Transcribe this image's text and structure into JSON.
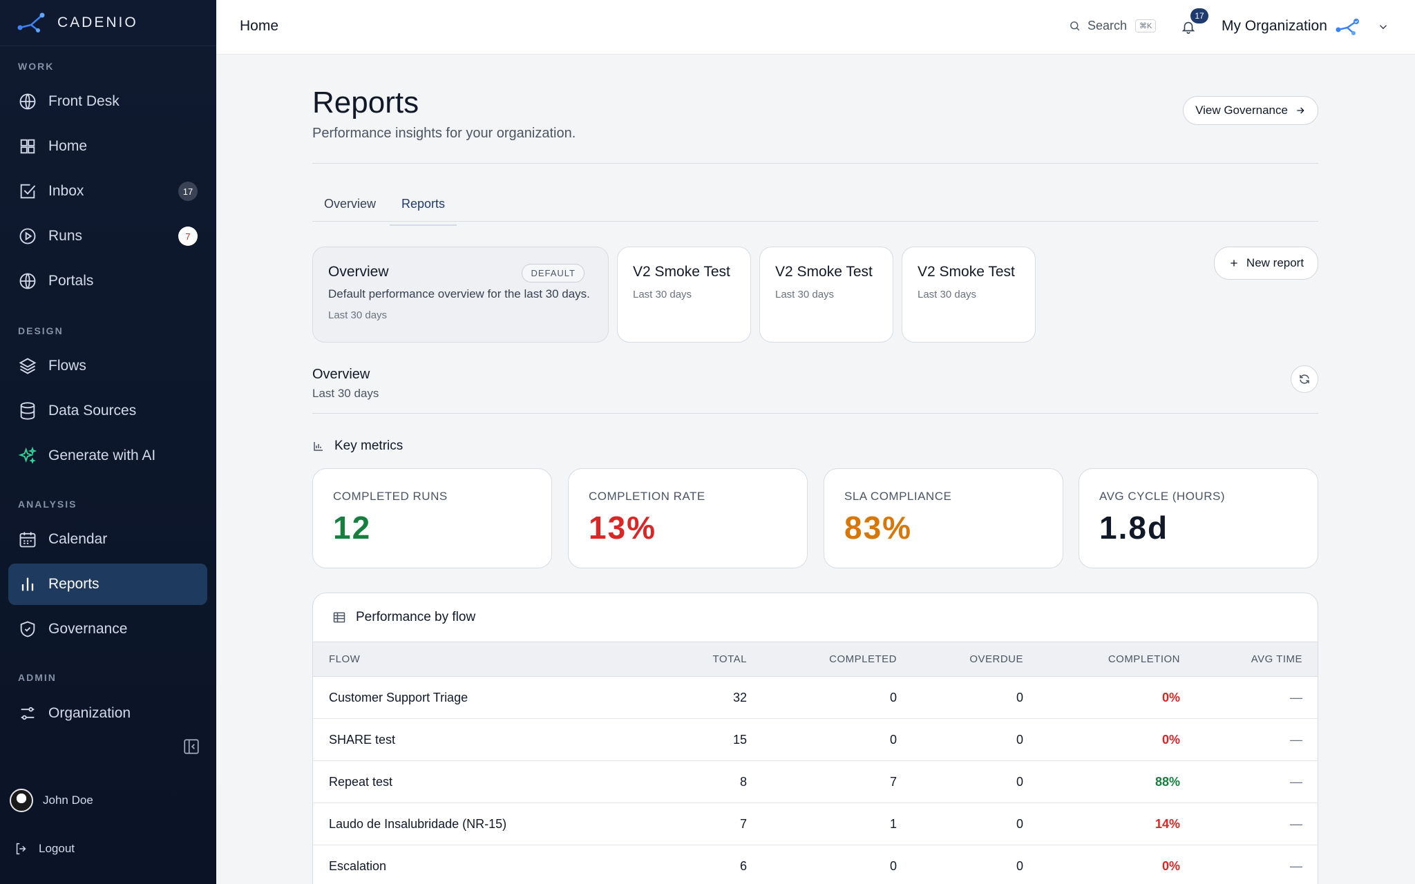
{
  "brand": {
    "name": "CADENIO"
  },
  "sidebar": {
    "sections": [
      {
        "label": "WORK"
      },
      {
        "label": "DESIGN"
      },
      {
        "label": "ANALYSIS"
      },
      {
        "label": "ADMIN"
      }
    ],
    "items": [
      {
        "label": "Front Desk",
        "icon": "globe-icon"
      },
      {
        "label": "Home",
        "icon": "grid-icon"
      },
      {
        "label": "Inbox",
        "icon": "checkbox-icon",
        "badge": "17"
      },
      {
        "label": "Runs",
        "icon": "play-circle-icon",
        "badge": "7"
      },
      {
        "label": "Portals",
        "icon": "globe-icon"
      },
      {
        "label": "Flows",
        "icon": "layers-icon"
      },
      {
        "label": "Data Sources",
        "icon": "database-icon"
      },
      {
        "label": "Generate with AI",
        "icon": "sparkles-icon"
      },
      {
        "label": "Calendar",
        "icon": "calendar-icon"
      },
      {
        "label": "Reports",
        "icon": "bar-chart-icon",
        "active": true
      },
      {
        "label": "Governance",
        "icon": "shield-icon"
      },
      {
        "label": "Organization",
        "icon": "sliders-icon"
      }
    ],
    "user": {
      "name": "John Doe"
    },
    "logout_label": "Logout"
  },
  "topbar": {
    "title": "Home",
    "search_label": "Search",
    "search_shortcut": "⌘K",
    "notification_count": "17",
    "org_name": "My Organization"
  },
  "page": {
    "title": "Reports",
    "subtitle": "Performance insights for your organization.",
    "governance_button": "View Governance",
    "tabs": [
      {
        "label": "Overview"
      },
      {
        "label": "Reports",
        "active": true
      }
    ],
    "new_report_button": "New report",
    "report_cards": [
      {
        "title": "Overview",
        "badge": "DEFAULT",
        "description": "Default performance overview for the last 30 days.",
        "range": "Last 30 days",
        "selected": true
      },
      {
        "title": "V2 Smoke Test",
        "range": "Last 30 days"
      },
      {
        "title": "V2 Smoke Test",
        "range": "Last 30 days"
      },
      {
        "title": "V2 Smoke Test",
        "range": "Last 30 days"
      }
    ],
    "section": {
      "title": "Overview",
      "subtitle": "Last 30 days"
    },
    "key_metrics_title": "Key metrics",
    "metrics": [
      {
        "label": "COMPLETED RUNS",
        "value": "12",
        "color": "#15803d"
      },
      {
        "label": "COMPLETION RATE",
        "value": "13%",
        "color": "#dc2626"
      },
      {
        "label": "SLA COMPLIANCE",
        "value": "83%",
        "color": "#d97706"
      },
      {
        "label": "AVG CYCLE (HOURS)",
        "value": "1.8d",
        "color": "#111827"
      }
    ],
    "table": {
      "title": "Performance by flow",
      "columns": [
        "FLOW",
        "TOTAL",
        "COMPLETED",
        "OVERDUE",
        "COMPLETION",
        "AVG TIME"
      ],
      "rows": [
        {
          "flow": "Customer Support Triage",
          "total": "32",
          "completed": "0",
          "overdue": "0",
          "completion": "0%",
          "avg": "—"
        },
        {
          "flow": "SHARE test",
          "total": "15",
          "completed": "0",
          "overdue": "0",
          "completion": "0%",
          "avg": "—"
        },
        {
          "flow": "Repeat test",
          "total": "8",
          "completed": "7",
          "overdue": "0",
          "completion": "88%",
          "avg": "—"
        },
        {
          "flow": "Laudo de Insalubridade (NR-15)",
          "total": "7",
          "completed": "1",
          "overdue": "0",
          "completion": "14%",
          "avg": "—"
        },
        {
          "flow": "Escalation",
          "total": "6",
          "completed": "0",
          "overdue": "0",
          "completion": "0%",
          "avg": "—"
        }
      ]
    }
  }
}
